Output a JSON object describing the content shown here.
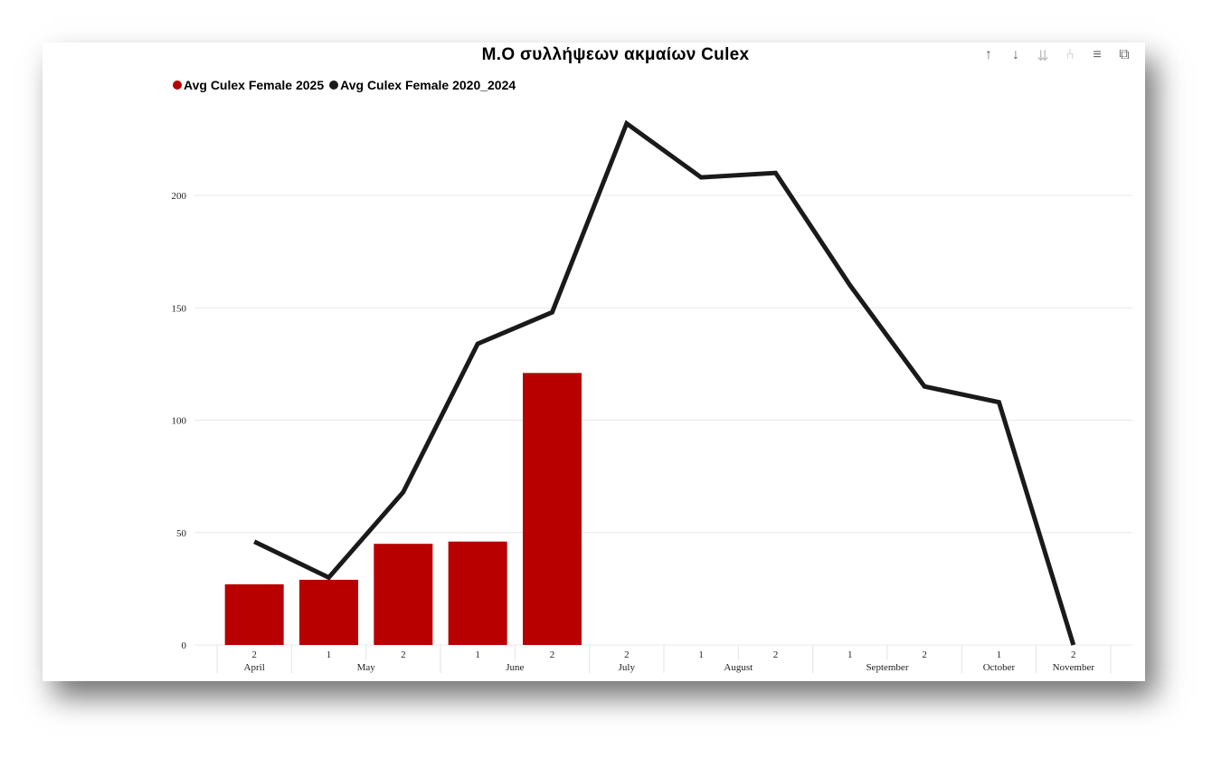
{
  "toolbar": {
    "icons": [
      "arrow-up-icon",
      "arrow-down-icon",
      "double-arrow-down-icon",
      "drill-icon",
      "filter-icon",
      "focus-mode-icon"
    ]
  },
  "colors": {
    "bar": "#b80000",
    "line": "#1a1a1a"
  },
  "chart_data": {
    "type": "bar+line",
    "title": "Μ.Ο συλλήψεων ακμαίων Culex",
    "xlabel": "",
    "ylabel": "",
    "ylim": [
      0,
      240
    ],
    "yticks": [
      0,
      50,
      100,
      150,
      200
    ],
    "grid": true,
    "legend_position": "top-left",
    "categories": [
      {
        "week": "2",
        "month": "April"
      },
      {
        "week": "1",
        "month": "May"
      },
      {
        "week": "2",
        "month": "May"
      },
      {
        "week": "1",
        "month": "June"
      },
      {
        "week": "2",
        "month": "June"
      },
      {
        "week": "2",
        "month": "July"
      },
      {
        "week": "1",
        "month": "August"
      },
      {
        "week": "2",
        "month": "August"
      },
      {
        "week": "1",
        "month": "September"
      },
      {
        "week": "2",
        "month": "September"
      },
      {
        "week": "1",
        "month": "October"
      },
      {
        "week": "2",
        "month": "November"
      }
    ],
    "months": [
      {
        "name": "April",
        "span": 1
      },
      {
        "name": "May",
        "span": 2
      },
      {
        "name": "June",
        "span": 2
      },
      {
        "name": "July",
        "span": 1
      },
      {
        "name": "August",
        "span": 2
      },
      {
        "name": "September",
        "span": 2
      },
      {
        "name": "October",
        "span": 1
      },
      {
        "name": "November",
        "span": 1
      }
    ],
    "series": [
      {
        "name": "Avg Culex Female 2025",
        "type": "bar",
        "color": "#b80000",
        "values": [
          27,
          29,
          45,
          46,
          121,
          null,
          null,
          null,
          null,
          null,
          null,
          null
        ]
      },
      {
        "name": "Avg Culex Female 2020_2024",
        "type": "line",
        "color": "#1a1a1a",
        "values": [
          46,
          30,
          68,
          134,
          148,
          232,
          208,
          210,
          160,
          115,
          108,
          0
        ]
      }
    ]
  }
}
